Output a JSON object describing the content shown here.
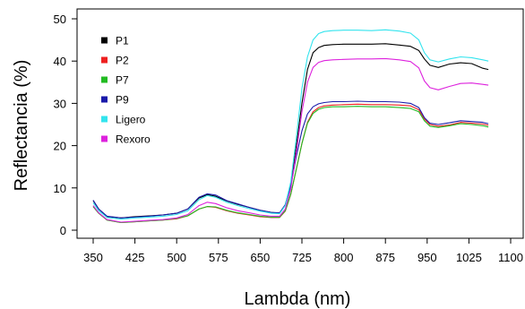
{
  "chart_data": {
    "type": "line",
    "xlabel": "Lambda (nm)",
    "ylabel": "Reflectancia (%)",
    "xlim": [
      350,
      1100
    ],
    "ylim": [
      0,
      50
    ],
    "x_ticks": [
      350,
      425,
      500,
      575,
      650,
      725,
      800,
      875,
      950,
      1025,
      1100
    ],
    "y_ticks": [
      0,
      10,
      20,
      30,
      40,
      50
    ],
    "x_tick_labels": [
      "350",
      "425",
      "500",
      "575",
      "650",
      "725",
      "800",
      "875",
      "950",
      "1025",
      "1100"
    ],
    "y_tick_labels": [
      "0",
      "10",
      "20",
      "30",
      "40",
      "50"
    ],
    "grid": false,
    "legend_position": "top-left",
    "x": [
      350,
      360,
      375,
      400,
      425,
      450,
      475,
      500,
      520,
      540,
      555,
      570,
      590,
      610,
      630,
      650,
      670,
      685,
      695,
      705,
      715,
      725,
      735,
      745,
      755,
      765,
      780,
      800,
      825,
      850,
      875,
      900,
      920,
      935,
      945,
      955,
      970,
      990,
      1010,
      1030,
      1050,
      1060
    ],
    "series": [
      {
        "name": "P1",
        "color": "#000000",
        "values": [
          7.0,
          5.0,
          3.2,
          2.9,
          3.2,
          3.4,
          3.6,
          4.0,
          5.0,
          7.6,
          8.4,
          8.0,
          6.9,
          6.1,
          5.4,
          4.7,
          4.2,
          4.0,
          6.0,
          11.0,
          20.0,
          30.0,
          38.0,
          42.0,
          43.2,
          43.7,
          43.9,
          44.0,
          44.0,
          44.0,
          44.1,
          43.8,
          43.5,
          42.5,
          40.5,
          39.0,
          38.5,
          39.3,
          39.6,
          39.4,
          38.3,
          38.0
        ]
      },
      {
        "name": "P2",
        "color": "#ee2020",
        "values": [
          5.6,
          4.0,
          2.4,
          1.8,
          2.0,
          2.2,
          2.4,
          2.7,
          3.4,
          5.0,
          5.6,
          5.4,
          4.6,
          4.0,
          3.6,
          3.2,
          3.0,
          3.0,
          4.5,
          8.5,
          14.5,
          20.5,
          25.5,
          28.0,
          29.0,
          29.4,
          29.6,
          29.7,
          29.8,
          29.7,
          29.7,
          29.6,
          29.4,
          28.5,
          26.3,
          25.0,
          24.6,
          24.9,
          25.5,
          25.3,
          25.1,
          24.8
        ]
      },
      {
        "name": "P7",
        "color": "#22bb22",
        "values": [
          5.6,
          4.0,
          2.4,
          1.8,
          2.0,
          2.2,
          2.4,
          2.8,
          3.4,
          5.0,
          5.6,
          5.5,
          4.7,
          4.1,
          3.7,
          3.3,
          3.1,
          3.1,
          4.6,
          8.6,
          14.5,
          20.5,
          25.3,
          27.6,
          28.6,
          29.0,
          29.2,
          29.2,
          29.3,
          29.2,
          29.2,
          29.0,
          28.8,
          28.0,
          25.9,
          24.6,
          24.3,
          24.7,
          25.2,
          25.0,
          24.7,
          24.4
        ]
      },
      {
        "name": "P9",
        "color": "#1a1aaa",
        "values": [
          7.1,
          5.0,
          3.3,
          2.9,
          3.1,
          3.3,
          3.6,
          4.0,
          5.0,
          7.8,
          8.6,
          8.3,
          7.0,
          6.2,
          5.4,
          4.7,
          4.2,
          4.1,
          6.0,
          10.5,
          17.5,
          23.5,
          27.5,
          29.2,
          29.9,
          30.2,
          30.4,
          30.4,
          30.5,
          30.4,
          30.4,
          30.3,
          30.0,
          29.0,
          26.6,
          25.3,
          25.0,
          25.4,
          25.9,
          25.7,
          25.5,
          25.2
        ]
      },
      {
        "name": "Ligero",
        "color": "#33e4ee",
        "values": [
          6.5,
          4.6,
          3.0,
          2.6,
          2.9,
          3.1,
          3.3,
          3.7,
          4.6,
          7.2,
          8.2,
          7.8,
          6.6,
          5.8,
          5.1,
          4.5,
          4.0,
          3.9,
          5.8,
          11.5,
          22.0,
          33.5,
          41.0,
          45.0,
          46.5,
          47.0,
          47.2,
          47.3,
          47.3,
          47.2,
          47.4,
          47.1,
          46.6,
          45.0,
          42.0,
          40.3,
          39.8,
          40.5,
          41.0,
          40.8,
          40.3,
          40.0
        ]
      },
      {
        "name": "Rexoro",
        "color": "#dd22dd",
        "values": [
          5.8,
          4.1,
          2.5,
          1.9,
          2.1,
          2.3,
          2.5,
          2.9,
          3.7,
          5.8,
          6.6,
          6.3,
          5.3,
          4.6,
          4.1,
          3.6,
          3.3,
          3.3,
          5.0,
          9.8,
          18.5,
          28.0,
          35.0,
          38.5,
          39.7,
          40.1,
          40.3,
          40.4,
          40.5,
          40.5,
          40.6,
          40.3,
          39.9,
          38.4,
          35.3,
          33.7,
          33.2,
          34.0,
          34.7,
          34.8,
          34.5,
          34.3
        ]
      }
    ]
  }
}
